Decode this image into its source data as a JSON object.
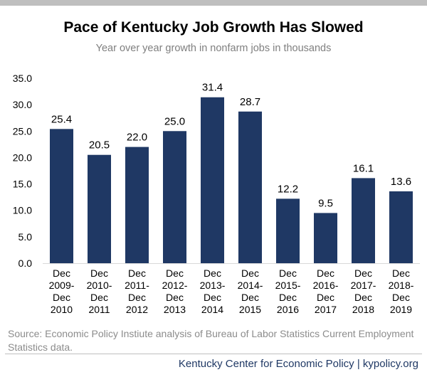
{
  "chart_data": {
    "type": "bar",
    "title": "Pace of Kentucky Job Growth Has Slowed",
    "subtitle": "Year over year growth in nonfarm jobs in thousands",
    "categories": [
      [
        "Dec",
        "2009-",
        "Dec",
        "2010"
      ],
      [
        "Dec",
        "2010-",
        "Dec",
        "2011"
      ],
      [
        "Dec",
        "2011-",
        "Dec",
        "2012"
      ],
      [
        "Dec",
        "2012-",
        "Dec",
        "2013"
      ],
      [
        "Dec",
        "2013-",
        "Dec",
        "2014"
      ],
      [
        "Dec",
        "2014-",
        "Dec",
        "2015"
      ],
      [
        "Dec",
        "2015-",
        "Dec",
        "2016"
      ],
      [
        "Dec",
        "2016-",
        "Dec",
        "2017"
      ],
      [
        "Dec",
        "2017-",
        "Dec",
        "2018"
      ],
      [
        "Dec",
        "2018-",
        "Dec",
        "2019"
      ]
    ],
    "values": [
      25.4,
      20.5,
      22.0,
      25.0,
      31.4,
      28.7,
      12.2,
      9.5,
      16.1,
      13.6
    ],
    "value_labels": [
      "25.4",
      "20.5",
      "22.0",
      "25.0",
      "31.4",
      "28.7",
      "12.2",
      "9.5",
      "16.1",
      "13.6"
    ],
    "yticks": [
      "0.0",
      "5.0",
      "10.0",
      "15.0",
      "20.0",
      "25.0",
      "30.0",
      "35.0"
    ],
    "ylim": [
      0,
      35
    ],
    "grid": false,
    "legend": "none",
    "bar_color": "#1f3864"
  },
  "source": "Source: Economic Policy Instiute analysis of Bureau of Labor Statistics Current Employment Statistics data.",
  "footer": "Kentucky Center for Economic Policy | kypolicy.org"
}
